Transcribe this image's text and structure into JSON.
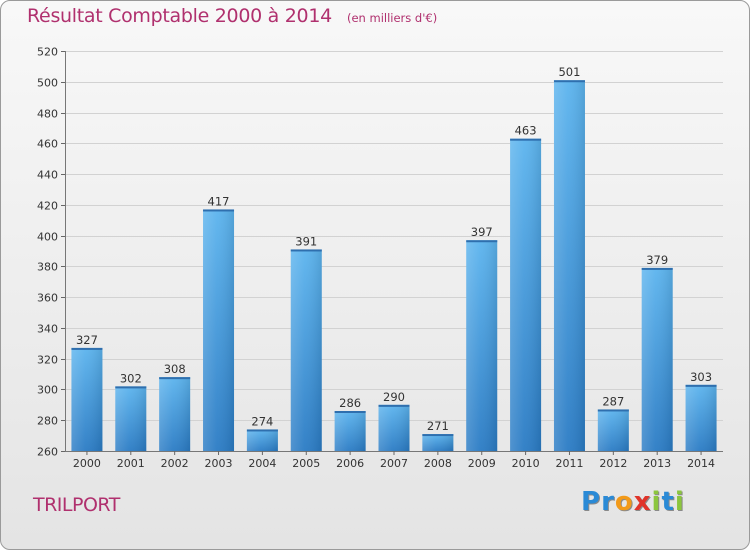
{
  "chart_data": {
    "type": "bar",
    "title": "Résultat Comptable 2000 à 2014",
    "subtitle": "(en milliers d'€)",
    "categories": [
      "2000",
      "2001",
      "2002",
      "2003",
      "2004",
      "2005",
      "2006",
      "2007",
      "2008",
      "2009",
      "2010",
      "2011",
      "2012",
      "2013",
      "2014"
    ],
    "values": [
      327,
      302,
      308,
      417,
      274,
      391,
      286,
      290,
      271,
      397,
      463,
      501,
      287,
      379,
      303
    ],
    "ylim": [
      260,
      520
    ],
    "yticks": [
      260,
      280,
      300,
      320,
      340,
      360,
      380,
      400,
      420,
      440,
      460,
      480,
      500,
      520
    ],
    "grid": true,
    "xlabel": "",
    "ylabel": "",
    "bar_color": "#4a9fe0",
    "data_labels": true
  },
  "commune": "TRILPORT",
  "brand": {
    "letters": [
      {
        "char": "P",
        "color": "#2a8ad6"
      },
      {
        "char": "r",
        "color": "#2a8ad6"
      },
      {
        "char": "o",
        "color": "#f29a1a"
      },
      {
        "char": "x",
        "color": "#e0342a"
      },
      {
        "char": "i",
        "color": "#8cc63e"
      },
      {
        "char": "t",
        "color": "#2a8ad6"
      },
      {
        "char": "i",
        "color": "#8cc63e"
      }
    ]
  },
  "colors": {
    "title": "#b0306e",
    "grid": "#d2d2d2",
    "axis_text": "#333333"
  }
}
